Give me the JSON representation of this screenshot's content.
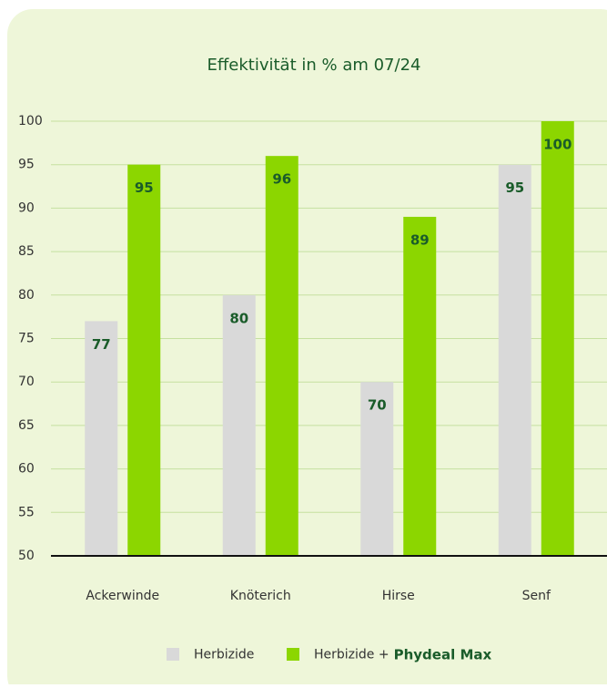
{
  "chart_data": {
    "type": "bar",
    "title": "Effektivität in % am 07/24",
    "categories": [
      "Ackerwinde",
      "Knöterich",
      "Hirse",
      "Senf"
    ],
    "series": [
      {
        "name": "Herbizide",
        "color": "#d9d9d9",
        "values": [
          77,
          80,
          70,
          95
        ]
      },
      {
        "name": "Herbizide +",
        "color": "#8cd600",
        "values": [
          95,
          96,
          89,
          100
        ]
      }
    ],
    "legend_brand": "Phydeal Max",
    "ylim": [
      50,
      100
    ],
    "yticks": [
      50,
      55,
      60,
      65,
      70,
      75,
      80,
      85,
      90,
      95,
      100
    ],
    "grid": true,
    "legend": "bottom"
  }
}
